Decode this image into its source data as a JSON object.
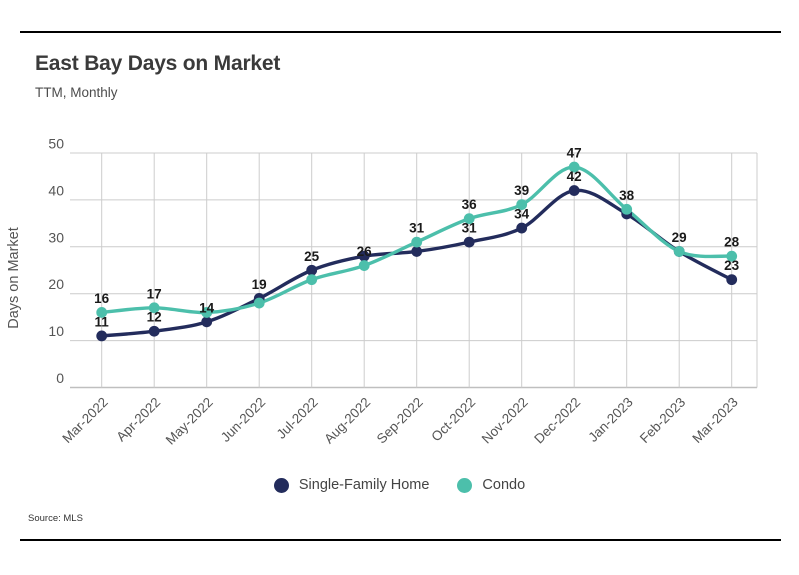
{
  "page": {
    "title": "East Bay Days on Market",
    "subtitle": "TTM, Monthly",
    "source": "Source: MLS"
  },
  "chart_data": {
    "type": "line",
    "title": "East Bay Days on Market",
    "subtitle": "TTM, Monthly",
    "xlabel": "",
    "ylabel": "Days on Market",
    "ylim": [
      0,
      50
    ],
    "yticks": [
      0,
      10,
      20,
      30,
      40,
      50
    ],
    "grid": true,
    "line_style": "smooth",
    "legend_position": "bottom",
    "source": "Source: MLS",
    "categories": [
      "Mar-2022",
      "Apr-2022",
      "May-2022",
      "Jun-2022",
      "Jul-2022",
      "Aug-2022",
      "Sep-2022",
      "Oct-2022",
      "Nov-2022",
      "Dec-2022",
      "Jan-2023",
      "Feb-2023",
      "Mar-2023"
    ],
    "series": [
      {
        "name": "Single-Family Home",
        "color": "#232c5c",
        "values": [
          11,
          12,
          14,
          19,
          25,
          28,
          29,
          31,
          34,
          42,
          37,
          29,
          23
        ],
        "point_labels": [
          11,
          12,
          14,
          19,
          25,
          null,
          null,
          31,
          34,
          42,
          null,
          null,
          23
        ]
      },
      {
        "name": "Condo",
        "color": "#4cbfab",
        "values": [
          16,
          17,
          16,
          18,
          23,
          26,
          31,
          36,
          39,
          47,
          38,
          29,
          28
        ],
        "point_labels": [
          16,
          17,
          null,
          null,
          null,
          26,
          31,
          36,
          39,
          47,
          38,
          29,
          28
        ]
      }
    ],
    "colors": {
      "gridline": "#cccccc",
      "axis_line": "#bfbfbf",
      "tick_label": "#555555",
      "point_label": "#1a1a1a"
    }
  }
}
